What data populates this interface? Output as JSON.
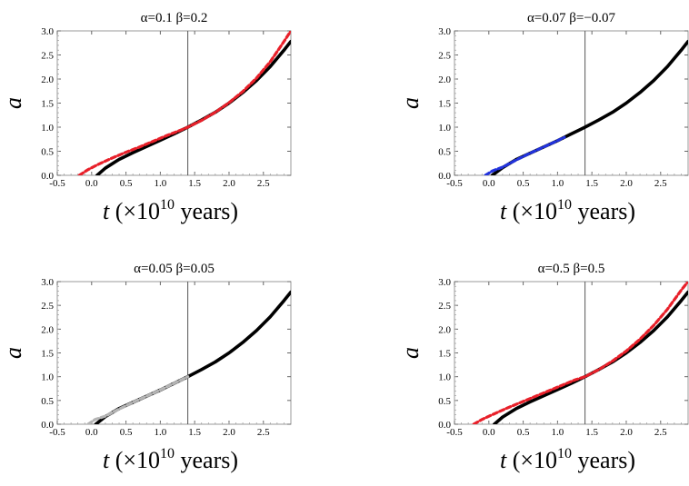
{
  "chart_data": [
    {
      "type": "line",
      "title": "α=0.1  β=0.2",
      "xlabel_var": "t",
      "xlabel_unit": "(×10",
      "xlabel_exp": "10",
      "xlabel_tail": " years)",
      "ylabel": "a",
      "xlim": [
        -0.5,
        2.9
      ],
      "ylim": [
        0,
        3.0
      ],
      "xticks": [
        "-0.5",
        "0.0",
        "0.5",
        "1.0",
        "1.5",
        "2.0",
        "2.5"
      ],
      "yticks": [
        "0.0",
        "0.5",
        "1.0",
        "1.5",
        "2.0",
        "2.5",
        "3.0"
      ],
      "vline_x": 1.4,
      "series": [
        {
          "color": "#000000",
          "style": "solid",
          "x": [
            0.08,
            0.2,
            0.4,
            0.6,
            0.8,
            1.0,
            1.2,
            1.4,
            1.6,
            1.8,
            2.0,
            2.2,
            2.4,
            2.6,
            2.8,
            2.9
          ],
          "y": [
            0.0,
            0.15,
            0.33,
            0.47,
            0.6,
            0.73,
            0.86,
            1.0,
            1.15,
            1.31,
            1.5,
            1.72,
            1.97,
            2.26,
            2.6,
            2.78
          ]
        },
        {
          "color": "#e8202a",
          "style": "dashed",
          "x": [
            -0.18,
            -0.05,
            0.1,
            0.3,
            0.5,
            0.7,
            0.9,
            1.1,
            1.3,
            1.4,
            1.6,
            1.8,
            2.0,
            2.2,
            2.4,
            2.6,
            2.8,
            2.9
          ],
          "y": [
            0.0,
            0.12,
            0.23,
            0.36,
            0.48,
            0.59,
            0.71,
            0.83,
            0.94,
            1.0,
            1.14,
            1.31,
            1.51,
            1.74,
            2.02,
            2.36,
            2.78,
            3.0
          ]
        }
      ]
    },
    {
      "type": "line",
      "title": "α=0.07  β=−0.07",
      "xlabel_var": "t",
      "xlabel_unit": "(×10",
      "xlabel_exp": "10",
      "xlabel_tail": " years)",
      "ylabel": "a",
      "xlim": [
        -0.5,
        2.9
      ],
      "ylim": [
        0,
        3.0
      ],
      "xticks": [
        "-0.5",
        "0.0",
        "0.5",
        "1.0",
        "1.5",
        "2.0",
        "2.5"
      ],
      "yticks": [
        "0.0",
        "0.5",
        "1.0",
        "1.5",
        "2.0",
        "2.5",
        "3.0"
      ],
      "vline_x": 1.4,
      "series": [
        {
          "color": "#000000",
          "style": "solid",
          "x": [
            0.05,
            0.2,
            0.4,
            0.6,
            0.8,
            1.0,
            1.2,
            1.4,
            1.6,
            1.8,
            2.0,
            2.2,
            2.4,
            2.6,
            2.8,
            2.9
          ],
          "y": [
            0.0,
            0.16,
            0.33,
            0.46,
            0.59,
            0.72,
            0.86,
            1.0,
            1.15,
            1.31,
            1.5,
            1.72,
            1.97,
            2.26,
            2.6,
            2.78
          ]
        },
        {
          "color": "#2233dd",
          "style": "dashed",
          "x": [
            -0.05,
            0.05,
            0.2,
            0.4,
            0.6,
            0.8,
            1.0,
            1.1
          ],
          "y": [
            0.0,
            0.09,
            0.17,
            0.32,
            0.46,
            0.59,
            0.72,
            0.79
          ]
        }
      ]
    },
    {
      "type": "line",
      "title": "α=0.05  β=0.05",
      "xlabel_var": "t",
      "xlabel_unit": "(×10",
      "xlabel_exp": "10",
      "xlabel_tail": " years)",
      "ylabel": "a",
      "xlim": [
        -0.5,
        2.9
      ],
      "ylim": [
        0,
        3.0
      ],
      "xticks": [
        "-0.5",
        "0.0",
        "0.5",
        "1.0",
        "1.5",
        "2.0",
        "2.5"
      ],
      "yticks": [
        "0.0",
        "0.5",
        "1.0",
        "1.5",
        "2.0",
        "2.5",
        "3.0"
      ],
      "vline_x": 1.4,
      "series": [
        {
          "color": "#000000",
          "style": "solid",
          "x": [
            0.06,
            0.2,
            0.4,
            0.6,
            0.8,
            1.0,
            1.2,
            1.4,
            1.6,
            1.8,
            2.0,
            2.2,
            2.4,
            2.6,
            2.8,
            2.9
          ],
          "y": [
            0.0,
            0.16,
            0.33,
            0.46,
            0.59,
            0.72,
            0.86,
            1.0,
            1.15,
            1.31,
            1.5,
            1.72,
            1.97,
            2.26,
            2.6,
            2.78
          ]
        },
        {
          "color": "#b5b5b5",
          "style": "dashed",
          "x": [
            -0.05,
            0.05,
            0.2,
            0.4,
            0.6,
            0.8,
            1.0,
            1.2,
            1.4
          ],
          "y": [
            0.0,
            0.1,
            0.17,
            0.32,
            0.46,
            0.59,
            0.72,
            0.86,
            1.0
          ]
        }
      ]
    },
    {
      "type": "line",
      "title": "α=0.5  β=0.5",
      "xlabel_var": "t",
      "xlabel_unit": "(×10",
      "xlabel_exp": "10",
      "xlabel_tail": " years)",
      "ylabel": "a",
      "xlim": [
        -0.5,
        2.9
      ],
      "ylim": [
        0,
        3.0
      ],
      "xticks": [
        "-0.5",
        "0.0",
        "0.5",
        "1.0",
        "1.5",
        "2.0",
        "2.5"
      ],
      "yticks": [
        "0.0",
        "0.5",
        "1.0",
        "1.5",
        "2.0",
        "2.5",
        "3.0"
      ],
      "vline_x": 1.4,
      "series": [
        {
          "color": "#000000",
          "style": "solid",
          "x": [
            0.08,
            0.2,
            0.4,
            0.6,
            0.8,
            1.0,
            1.2,
            1.4,
            1.6,
            1.8,
            2.0,
            2.2,
            2.4,
            2.6,
            2.8,
            2.9
          ],
          "y": [
            0.0,
            0.15,
            0.33,
            0.47,
            0.6,
            0.73,
            0.86,
            1.0,
            1.15,
            1.31,
            1.5,
            1.72,
            1.97,
            2.26,
            2.6,
            2.78
          ]
        },
        {
          "color": "#e8202a",
          "style": "dashed",
          "x": [
            -0.22,
            -0.1,
            0.05,
            0.25,
            0.45,
            0.65,
            0.85,
            1.05,
            1.25,
            1.4,
            1.6,
            1.8,
            2.0,
            2.2,
            2.4,
            2.6,
            2.8,
            2.9
          ],
          "y": [
            0.0,
            0.1,
            0.2,
            0.33,
            0.45,
            0.57,
            0.69,
            0.81,
            0.93,
            1.0,
            1.15,
            1.33,
            1.54,
            1.79,
            2.08,
            2.42,
            2.82,
            3.0
          ]
        }
      ]
    }
  ]
}
